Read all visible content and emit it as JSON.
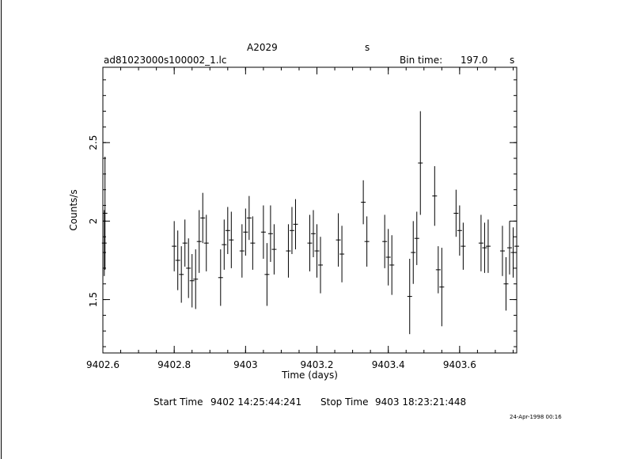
{
  "header": {
    "source": "A2029",
    "rate_unit": "s",
    "file": "ad81023000s100002_1.lc",
    "bin_label": "Bin time:",
    "bin_value": "197.0",
    "bin_unit": "s"
  },
  "footer": {
    "start_label": "Start Time",
    "start_value": "9402  14:25:44:241",
    "stop_label": "Stop Time",
    "stop_value": "9403  18:23:21:448",
    "stamp": "24-Apr-1998 00:16"
  },
  "chart_data": {
    "type": "scatter",
    "xlabel": "Time (days)",
    "ylabel": "Counts/s",
    "xlim": [
      9402.6,
      9403.76
    ],
    "ylim": [
      1.16,
      2.98
    ],
    "x_ticks": [
      9402.6,
      9402.8,
      9403,
      9403.2,
      9403.4,
      9403.6
    ],
    "x_tick_labels": [
      "9402.6",
      "9402.8",
      "9403",
      "9403.2",
      "9403.4",
      "9403.6"
    ],
    "y_ticks": [
      1.5,
      2,
      2.5
    ],
    "y_tick_labels": [
      "1.5",
      "2",
      "2.5"
    ],
    "grid": false,
    "series": [
      {
        "points": [
          [
            9402.604,
            1.86,
            0.21
          ],
          [
            9402.606,
            2.05,
            0.36
          ],
          [
            9402.8,
            1.84,
            0.16
          ],
          [
            9402.81,
            1.75,
            0.19
          ],
          [
            9402.82,
            1.66,
            0.18
          ],
          [
            9402.83,
            1.86,
            0.15
          ],
          [
            9402.84,
            1.7,
            0.19
          ],
          [
            9402.85,
            1.62,
            0.17
          ],
          [
            9402.86,
            1.63,
            0.19
          ],
          [
            9402.87,
            1.87,
            0.2
          ],
          [
            9402.88,
            2.02,
            0.16
          ],
          [
            9402.89,
            1.86,
            0.18
          ],
          [
            9402.93,
            1.64,
            0.18
          ],
          [
            9402.94,
            1.85,
            0.16
          ],
          [
            9402.95,
            1.94,
            0.15
          ],
          [
            9402.96,
            1.88,
            0.18
          ],
          [
            9402.99,
            1.81,
            0.17
          ],
          [
            9403.0,
            1.93,
            0.15
          ],
          [
            9403.01,
            2.02,
            0.14
          ],
          [
            9403.02,
            1.86,
            0.17
          ],
          [
            9403.05,
            1.93,
            0.17
          ],
          [
            9403.06,
            1.66,
            0.2
          ],
          [
            9403.07,
            1.92,
            0.18
          ],
          [
            9403.08,
            1.82,
            0.16
          ],
          [
            9403.12,
            1.81,
            0.17
          ],
          [
            9403.13,
            1.94,
            0.15
          ],
          [
            9403.14,
            1.98,
            0.16
          ],
          [
            9403.18,
            1.86,
            0.18
          ],
          [
            9403.19,
            1.92,
            0.15
          ],
          [
            9403.2,
            1.81,
            0.17
          ],
          [
            9403.21,
            1.72,
            0.18
          ],
          [
            9403.26,
            1.88,
            0.17
          ],
          [
            9403.27,
            1.79,
            0.18
          ],
          [
            9403.33,
            2.12,
            0.14
          ],
          [
            9403.34,
            1.87,
            0.16
          ],
          [
            9403.39,
            1.87,
            0.17
          ],
          [
            9403.4,
            1.77,
            0.18
          ],
          [
            9403.41,
            1.72,
            0.19
          ],
          [
            9403.46,
            1.52,
            0.24
          ],
          [
            9403.47,
            1.8,
            0.2
          ],
          [
            9403.48,
            1.89,
            0.17
          ],
          [
            9403.49,
            2.37,
            0.33
          ],
          [
            9403.53,
            2.16,
            0.19
          ],
          [
            9403.54,
            1.69,
            0.15
          ],
          [
            9403.55,
            1.58,
            0.25
          ],
          [
            9403.59,
            2.05,
            0.15
          ],
          [
            9403.6,
            1.94,
            0.16
          ],
          [
            9403.61,
            1.84,
            0.15
          ],
          [
            9403.66,
            1.86,
            0.18
          ],
          [
            9403.67,
            1.83,
            0.16
          ],
          [
            9403.68,
            1.84,
            0.17
          ],
          [
            9403.72,
            1.81,
            0.16
          ],
          [
            9403.73,
            1.6,
            0.17
          ],
          [
            9403.74,
            1.83,
            0.17
          ],
          [
            9403.75,
            1.8,
            0.16
          ],
          [
            9403.76,
            1.84,
            0.17
          ]
        ]
      }
    ]
  }
}
